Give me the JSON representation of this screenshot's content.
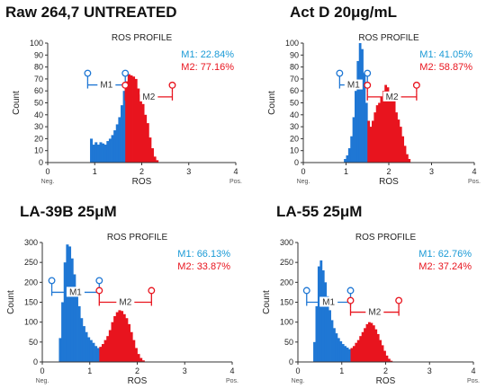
{
  "colors": {
    "m1": "#1f77d4",
    "m2": "#e8141e",
    "m1_text": "#1a9ad6",
    "m2_text": "#e8141e",
    "axis": "#333333"
  },
  "chart_data": [
    {
      "type": "histogram",
      "title": "Raw 264,7 UNTREATED",
      "subtitle": "ROS PROFILE",
      "xlabel": "ROS",
      "ylabel": "Count",
      "xlim": [
        0,
        4
      ],
      "ylim": [
        0,
        100
      ],
      "yticks": [
        "0",
        "10",
        "20",
        "30",
        "40",
        "50",
        "60",
        "70",
        "80",
        "90",
        "100"
      ],
      "xticks": [
        "0",
        "1",
        "2",
        "3",
        "4"
      ],
      "x_neg_label": "Neg.",
      "x_pos_label": "Pos.",
      "gate_split": 1.65,
      "gate_m1": {
        "label": "M1",
        "from": 0.85,
        "to": 1.65,
        "y": 65
      },
      "gate_m2": {
        "label": "M2",
        "from": 1.65,
        "to": 2.65,
        "y": 55
      },
      "stats": {
        "m1": "M1: 22.84%",
        "m2": "M2: 77.16%"
      },
      "x": [
        0.9,
        0.95,
        1.0,
        1.05,
        1.1,
        1.15,
        1.2,
        1.25,
        1.3,
        1.35,
        1.4,
        1.45,
        1.5,
        1.55,
        1.6,
        1.65,
        1.7,
        1.75,
        1.8,
        1.85,
        1.9,
        1.95,
        2.0,
        2.05,
        2.1,
        2.15,
        2.2,
        2.25,
        2.3
      ],
      "values": [
        20,
        15,
        17,
        15,
        17,
        16,
        15,
        18,
        20,
        23,
        27,
        32,
        38,
        48,
        60,
        68,
        74,
        73,
        72,
        70,
        62,
        57,
        49,
        40,
        33,
        21,
        12,
        5,
        2
      ]
    },
    {
      "type": "histogram",
      "title": "Act D 20μg/mL",
      "subtitle": "ROS PROFILE",
      "xlabel": "ROS",
      "ylabel": "Count",
      "xlim": [
        0,
        4
      ],
      "ylim": [
        0,
        100
      ],
      "yticks": [
        "0",
        "10",
        "20",
        "30",
        "40",
        "50",
        "60",
        "70",
        "80",
        "90",
        "100"
      ],
      "xticks": [
        "0",
        "1",
        "2",
        "3",
        "4"
      ],
      "x_neg_label": "Neg.",
      "x_pos_label": "Pos.",
      "gate_split": 1.5,
      "gate_m1": {
        "label": "M1",
        "from": 0.85,
        "to": 1.5,
        "y": 65
      },
      "gate_m2": {
        "label": "M2",
        "from": 1.5,
        "to": 2.65,
        "y": 55
      },
      "stats": {
        "m1": "M1: 41.05%",
        "m2": "M2: 58.87%"
      },
      "x": [
        0.95,
        1.0,
        1.05,
        1.1,
        1.15,
        1.2,
        1.25,
        1.3,
        1.35,
        1.4,
        1.45,
        1.5,
        1.55,
        1.6,
        1.65,
        1.7,
        1.75,
        1.8,
        1.85,
        1.9,
        1.95,
        2.0,
        2.05,
        2.1,
        2.15,
        2.2,
        2.25,
        2.3,
        2.35,
        2.4,
        2.45
      ],
      "values": [
        3,
        6,
        12,
        22,
        38,
        60,
        85,
        100,
        95,
        75,
        50,
        35,
        30,
        35,
        42,
        48,
        50,
        55,
        60,
        65,
        63,
        55,
        58,
        52,
        42,
        36,
        30,
        22,
        14,
        7,
        3
      ]
    },
    {
      "type": "histogram",
      "title": "LA-39B 25μM",
      "subtitle": "ROS PROFILE",
      "xlabel": "ROS",
      "ylabel": "Count",
      "xlim": [
        0,
        4
      ],
      "ylim": [
        0,
        300
      ],
      "yticks": [
        "0",
        "50",
        "100",
        "150",
        "200",
        "250",
        "300"
      ],
      "xticks": [
        "0",
        "1",
        "2",
        "3",
        "4"
      ],
      "x_neg_label": "Neg.",
      "x_pos_label": "Pos.",
      "gate_split": 1.2,
      "gate_m1": {
        "label": "M1",
        "from": 0.2,
        "to": 1.2,
        "y": 175
      },
      "gate_m2": {
        "label": "M2",
        "from": 1.2,
        "to": 2.3,
        "y": 150
      },
      "stats": {
        "m1": "M1: 66.13%",
        "m2": "M2: 33.87%"
      },
      "x": [
        0.35,
        0.4,
        0.45,
        0.5,
        0.55,
        0.6,
        0.65,
        0.7,
        0.75,
        0.8,
        0.85,
        0.9,
        0.95,
        1.0,
        1.05,
        1.1,
        1.15,
        1.2,
        1.25,
        1.3,
        1.35,
        1.4,
        1.45,
        1.5,
        1.55,
        1.6,
        1.65,
        1.7,
        1.75,
        1.8,
        1.85,
        1.9,
        1.95,
        2.0,
        2.05,
        2.1
      ],
      "values": [
        60,
        150,
        250,
        295,
        290,
        260,
        220,
        175,
        140,
        110,
        90,
        75,
        62,
        55,
        48,
        40,
        35,
        38,
        45,
        55,
        65,
        80,
        100,
        115,
        125,
        130,
        128,
        120,
        110,
        95,
        75,
        55,
        35,
        20,
        10,
        4
      ]
    },
    {
      "type": "histogram",
      "title": "LA-55 25μM",
      "subtitle": "ROS PROFILE",
      "xlabel": "ROS",
      "ylabel": "Count",
      "xlim": [
        0,
        4
      ],
      "ylim": [
        0,
        300
      ],
      "yticks": [
        "0",
        "50",
        "100",
        "150",
        "200",
        "250",
        "300"
      ],
      "xticks": [
        "0",
        "1",
        "2",
        "3",
        "4"
      ],
      "x_neg_label": "Neg.",
      "x_pos_label": "Pos.",
      "gate_split": 1.2,
      "gate_m1": {
        "label": "M1",
        "from": 0.2,
        "to": 1.2,
        "y": 150
      },
      "gate_m2": {
        "label": "M2",
        "from": 1.2,
        "to": 2.3,
        "y": 125
      },
      "stats": {
        "m1": "M1: 62.76%",
        "m2": "M2: 37.24%"
      },
      "x": [
        0.35,
        0.4,
        0.45,
        0.5,
        0.55,
        0.6,
        0.65,
        0.7,
        0.75,
        0.8,
        0.85,
        0.9,
        0.95,
        1.0,
        1.05,
        1.1,
        1.15,
        1.2,
        1.25,
        1.3,
        1.35,
        1.4,
        1.45,
        1.5,
        1.55,
        1.6,
        1.65,
        1.7,
        1.75,
        1.8,
        1.85,
        1.9,
        1.95,
        2.0,
        2.05,
        2.1
      ],
      "values": [
        50,
        140,
        240,
        255,
        230,
        200,
        165,
        130,
        105,
        85,
        72,
        60,
        52,
        45,
        40,
        36,
        32,
        35,
        40,
        48,
        55,
        65,
        75,
        85,
        95,
        100,
        98,
        92,
        82,
        70,
        55,
        42,
        28,
        16,
        8,
        3
      ]
    }
  ]
}
